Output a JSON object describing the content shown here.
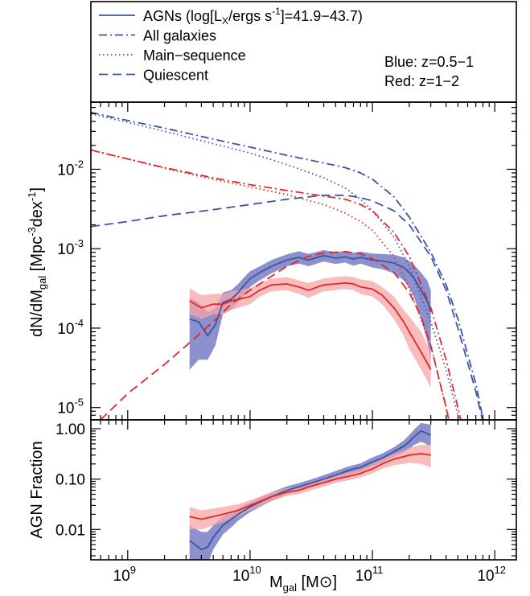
{
  "chart_data": [
    {
      "type": "line",
      "panel": "top",
      "xlabel": "",
      "ylabel_base": "dN/dM",
      "ylabel_sub": "gal",
      "ylabel_unit_pre": "[Mpc",
      "ylabel_unit_exp1": "-3",
      "ylabel_unit_mid": "dex",
      "ylabel_unit_exp2": "-1",
      "ylabel_unit_post": "]",
      "x_scale": "log",
      "y_scale": "log",
      "xlim": [
        500000000,
        1500000000000
      ],
      "ylim": [
        7e-06,
        0.07
      ],
      "y_ticks": [
        {
          "value": 0.01,
          "base": "10",
          "exp": "-2"
        },
        {
          "value": 0.001,
          "base": "10",
          "exp": "-3"
        },
        {
          "value": 0.0001,
          "base": "10",
          "exp": "-4"
        },
        {
          "value": 1e-05,
          "base": "10",
          "exp": "-5"
        }
      ],
      "legend": {
        "placement": "top",
        "entries": [
          {
            "label": "AGNs (log[L",
            "sub": "X",
            "mid": "/ergs s",
            "sup": "-1",
            "tail": "]=41.9−43.7)",
            "style": "solid"
          },
          {
            "label": "All galaxies",
            "style": "dashdot"
          },
          {
            "label": "Main−sequence",
            "style": "dotted"
          },
          {
            "label": "Quiescent",
            "style": "dashed"
          }
        ],
        "notes": [
          "Blue: z=0.5−1",
          "Red: z=1−2"
        ]
      },
      "colors": {
        "blue": "#3a55a4",
        "red": "#e02828",
        "blue_band": "#7f85c9",
        "red_band": "#f7a6a6"
      },
      "series": [
        {
          "style": "dashdot",
          "color": "blue",
          "x": [
            500000000,
            1000000000,
            2000000000,
            5000000000,
            10000000000,
            20000000000,
            40000000000,
            60000000000,
            80000000000,
            100000000000,
            150000000000,
            200000000000,
            300000000000,
            400000000000,
            500000000000,
            700000000000,
            900000000000
          ],
          "y": [
            0.052,
            0.041,
            0.033,
            0.024,
            0.019,
            0.015,
            0.012,
            0.0105,
            0.009,
            0.0075,
            0.0045,
            0.0025,
            0.0009,
            0.00035,
            0.00013,
            2e-05,
            3e-06
          ]
        },
        {
          "style": "dotted",
          "color": "blue",
          "x": [
            500000000,
            1000000000,
            2000000000,
            5000000000,
            10000000000,
            20000000000,
            40000000000,
            60000000000,
            80000000000,
            100000000000,
            150000000000,
            200000000000,
            300000000000,
            400000000000,
            500000000000,
            700000000000
          ],
          "y": [
            0.05,
            0.039,
            0.03,
            0.021,
            0.016,
            0.0115,
            0.0078,
            0.0058,
            0.0042,
            0.003,
            0.0014,
            0.0006,
            0.00012,
            3e-05,
            8e-06,
            1e-06
          ]
        },
        {
          "style": "dashed",
          "color": "blue",
          "x": [
            500000000,
            1000000000,
            2000000000,
            5000000000,
            10000000000,
            20000000000,
            40000000000,
            60000000000,
            80000000000,
            100000000000,
            150000000000,
            200000000000,
            300000000000,
            400000000000,
            500000000000,
            700000000000,
            900000000000
          ],
          "y": [
            0.0019,
            0.0022,
            0.0026,
            0.0031,
            0.0036,
            0.0042,
            0.0047,
            0.0047,
            0.0044,
            0.004,
            0.003,
            0.002,
            0.0008,
            0.0003,
            0.0001,
            1.6e-05,
            3e-06
          ]
        },
        {
          "style": "solid",
          "color": "blue",
          "band": true,
          "x": [
            3200000000,
            3800000000,
            4500000000,
            5200000000,
            6000000000,
            7000000000,
            8000000000,
            9000000000,
            10000000000,
            12000000000,
            15000000000,
            20000000000,
            25000000000,
            30000000000,
            40000000000,
            50000000000,
            60000000000,
            70000000000,
            80000000000,
            100000000000,
            120000000000,
            150000000000,
            180000000000,
            200000000000,
            220000000000,
            250000000000,
            280000000000,
            300000000000
          ],
          "y": [
            0.00013,
            0.00012,
            8e-05,
            0.00011,
            0.00021,
            0.00023,
            0.00028,
            0.00035,
            0.00042,
            0.0005,
            0.0006,
            0.00072,
            0.00078,
            0.00072,
            0.00082,
            0.00076,
            0.00079,
            0.00074,
            0.00078,
            0.00072,
            0.0007,
            0.00066,
            0.00058,
            0.0005,
            0.00042,
            0.0003,
            0.00022,
            0.00016
          ],
          "lower": [
            3e-05,
            4e-05,
            4e-05,
            6e-05,
            0.00015,
            0.00017,
            0.00021,
            0.00026,
            0.00033,
            0.0004,
            0.00049,
            0.0006,
            0.00065,
            0.0006,
            0.00069,
            0.00064,
            0.00067,
            0.00061,
            0.00065,
            0.00058,
            0.00055,
            0.00049,
            0.0004,
            0.00032,
            0.00024,
            0.00013,
            7e-05,
            4e-05
          ],
          "upper": [
            0.00024,
            0.00021,
            0.00016,
            0.00018,
            0.00028,
            0.0003,
            0.00036,
            0.00044,
            0.00052,
            0.0006,
            0.00072,
            0.00085,
            0.00093,
            0.00086,
            0.00096,
            0.00091,
            0.00093,
            0.00089,
            0.00092,
            0.00087,
            0.00086,
            0.00084,
            0.00078,
            0.0007,
            0.00062,
            0.0005,
            0.0004,
            0.0003
          ]
        },
        {
          "style": "dashdot",
          "color": "red",
          "x": [
            500000000,
            1000000000,
            2000000000,
            5000000000,
            10000000000,
            20000000000,
            40000000000,
            60000000000,
            80000000000,
            100000000000,
            150000000000,
            200000000000,
            300000000000,
            400000000000,
            500000000000,
            700000000000
          ],
          "y": [
            0.0175,
            0.0135,
            0.0105,
            0.0078,
            0.0064,
            0.0054,
            0.0046,
            0.0042,
            0.0036,
            0.003,
            0.0016,
            0.0008,
            0.00018,
            4e-05,
            1e-05,
            1e-06
          ]
        },
        {
          "style": "dotted",
          "color": "red",
          "x": [
            500000000,
            1000000000,
            2000000000,
            5000000000,
            10000000000,
            20000000000,
            40000000000,
            60000000000,
            80000000000,
            100000000000,
            150000000000,
            200000000000,
            300000000000,
            400000000000,
            500000000000
          ],
          "y": [
            0.0175,
            0.0135,
            0.0103,
            0.0075,
            0.006,
            0.0048,
            0.0036,
            0.0028,
            0.0022,
            0.0017,
            0.0008,
            0.00032,
            6e-05,
            1e-05,
            2e-06
          ]
        },
        {
          "style": "dashed",
          "color": "red",
          "x": [
            600000000,
            1000000000,
            2000000000,
            3000000000,
            5000000000,
            7000000000,
            10000000000,
            15000000000,
            20000000000,
            30000000000,
            40000000000,
            60000000000,
            80000000000,
            100000000000,
            150000000000,
            200000000000,
            250000000000,
            300000000000,
            400000000000,
            500000000000
          ],
          "y": [
            7e-06,
            1.5e-05,
            3.5e-05,
            6e-05,
            0.00012,
            0.0002,
            0.0003,
            0.00045,
            0.0006,
            0.0008,
            0.00088,
            0.00092,
            0.00086,
            0.00075,
            0.0005,
            0.00028,
            0.00014,
            6e-05,
            1e-05,
            2e-06
          ]
        },
        {
          "style": "solid",
          "color": "red",
          "band": true,
          "x": [
            3200000000,
            4000000000,
            5000000000,
            6000000000,
            7000000000,
            8000000000,
            10000000000,
            12000000000,
            15000000000,
            20000000000,
            25000000000,
            30000000000,
            40000000000,
            50000000000,
            60000000000,
            70000000000,
            80000000000,
            100000000000,
            120000000000,
            150000000000,
            180000000000,
            200000000000,
            250000000000,
            300000000000
          ],
          "y": [
            0.00022,
            0.00018,
            0.0002,
            0.0002,
            0.00022,
            0.00023,
            0.00025,
            0.0003,
            0.00035,
            0.00036,
            0.00033,
            0.0003,
            0.00035,
            0.00036,
            0.00037,
            0.00036,
            0.00033,
            0.00031,
            0.00026,
            0.00018,
            0.00012,
            9e-05,
            5e-05,
            3e-05
          ],
          "lower": [
            0.00015,
            0.00013,
            0.00015,
            0.00015,
            0.00017,
            0.00018,
            0.0002,
            0.00025,
            0.00029,
            0.0003,
            0.00027,
            0.00024,
            0.00029,
            0.0003,
            0.00031,
            0.0003,
            0.00027,
            0.00025,
            0.0002,
            0.00013,
            8e-05,
            5.5e-05,
            3e-05,
            1.8e-05
          ],
          "upper": [
            0.00032,
            0.00026,
            0.00027,
            0.00027,
            0.00029,
            0.0003,
            0.00032,
            0.00037,
            0.00042,
            0.00044,
            0.0004,
            0.00037,
            0.00042,
            0.00044,
            0.00045,
            0.00044,
            0.00041,
            0.00039,
            0.00033,
            0.00025,
            0.00017,
            0.00014,
            9e-05,
            5e-05
          ]
        }
      ]
    },
    {
      "type": "line",
      "panel": "bottom",
      "xlabel_base": "M",
      "xlabel_sub": "gal",
      "xlabel_unit": "[M⊙]",
      "ylabel": "AGN Fraction",
      "x_scale": "log",
      "y_scale": "log",
      "xlim": [
        500000000,
        1500000000000
      ],
      "ylim": [
        0.0025,
        1.5
      ],
      "x_ticks": [
        {
          "value": 1000000000,
          "base": "10",
          "exp": "9"
        },
        {
          "value": 10000000000,
          "base": "10",
          "exp": "10"
        },
        {
          "value": 100000000000,
          "base": "10",
          "exp": "11"
        },
        {
          "value": 1000000000000,
          "base": "10",
          "exp": "12"
        }
      ],
      "y_ticks": [
        {
          "value": 1.0,
          "label": "1.00"
        },
        {
          "value": 0.1,
          "label": "0.10"
        },
        {
          "value": 0.01,
          "label": "0.01"
        }
      ],
      "series": [
        {
          "style": "solid",
          "color": "blue",
          "band": true,
          "x": [
            3200000000,
            4000000000,
            4500000000,
            5000000000,
            6000000000,
            7000000000,
            8000000000,
            10000000000,
            12000000000,
            15000000000,
            20000000000,
            25000000000,
            30000000000,
            40000000000,
            50000000000,
            60000000000,
            70000000000,
            80000000000,
            100000000000,
            120000000000,
            150000000000,
            180000000000,
            200000000000,
            220000000000,
            250000000000,
            300000000000
          ],
          "y": [
            0.006,
            0.004,
            0.0045,
            0.007,
            0.012,
            0.016,
            0.02,
            0.028,
            0.035,
            0.045,
            0.06,
            0.07,
            0.08,
            0.1,
            0.12,
            0.14,
            0.16,
            0.17,
            0.22,
            0.26,
            0.35,
            0.45,
            0.55,
            0.7,
            0.9,
            0.75
          ],
          "lower": [
            0.002,
            0.0018,
            0.002,
            0.004,
            0.008,
            0.011,
            0.015,
            0.022,
            0.028,
            0.037,
            0.05,
            0.058,
            0.066,
            0.083,
            0.1,
            0.116,
            0.13,
            0.14,
            0.18,
            0.21,
            0.28,
            0.34,
            0.4,
            0.48,
            0.55,
            0.45
          ],
          "upper": [
            0.012,
            0.009,
            0.009,
            0.012,
            0.018,
            0.022,
            0.026,
            0.035,
            0.043,
            0.055,
            0.072,
            0.083,
            0.095,
            0.12,
            0.145,
            0.17,
            0.19,
            0.205,
            0.27,
            0.32,
            0.43,
            0.58,
            0.75,
            0.98,
            1.3,
            1.2
          ]
        },
        {
          "style": "solid",
          "color": "red",
          "band": true,
          "x": [
            3200000000,
            4000000000,
            5000000000,
            6000000000,
            7000000000,
            8000000000,
            10000000000,
            12000000000,
            15000000000,
            20000000000,
            25000000000,
            30000000000,
            40000000000,
            50000000000,
            60000000000,
            70000000000,
            80000000000,
            100000000000,
            120000000000,
            150000000000,
            180000000000,
            200000000000,
            250000000000,
            300000000000
          ],
          "y": [
            0.018,
            0.016,
            0.018,
            0.02,
            0.022,
            0.024,
            0.03,
            0.036,
            0.045,
            0.055,
            0.06,
            0.07,
            0.085,
            0.1,
            0.11,
            0.12,
            0.13,
            0.16,
            0.2,
            0.25,
            0.28,
            0.3,
            0.32,
            0.3
          ],
          "lower": [
            0.01,
            0.01,
            0.012,
            0.014,
            0.016,
            0.018,
            0.024,
            0.029,
            0.037,
            0.046,
            0.05,
            0.058,
            0.071,
            0.084,
            0.092,
            0.1,
            0.108,
            0.13,
            0.16,
            0.19,
            0.2,
            0.21,
            0.2,
            0.17
          ],
          "upper": [
            0.028,
            0.024,
            0.026,
            0.028,
            0.03,
            0.032,
            0.038,
            0.045,
            0.055,
            0.066,
            0.072,
            0.084,
            0.102,
            0.12,
            0.132,
            0.144,
            0.156,
            0.2,
            0.25,
            0.32,
            0.37,
            0.42,
            0.48,
            0.48
          ]
        }
      ]
    }
  ]
}
